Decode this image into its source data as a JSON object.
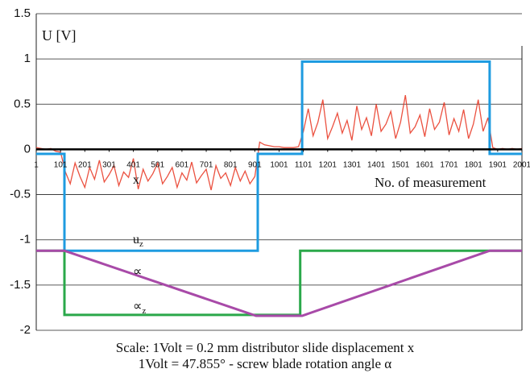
{
  "chart_data": {
    "type": "line",
    "y_label": "U [V]",
    "x_label": "No. of measurement",
    "ylim": [
      -2,
      1.5
    ],
    "yticks": [
      -2,
      -1.5,
      -1,
      -0.5,
      0,
      0.5,
      1,
      1.5
    ],
    "xlim": [
      1,
      2001
    ],
    "xticks": [
      1,
      101,
      201,
      301,
      401,
      501,
      601,
      701,
      801,
      901,
      1001,
      1101,
      1201,
      1301,
      1401,
      1501,
      1601,
      1701,
      1801,
      1901,
      2001
    ],
    "grid": true,
    "series": [
      {
        "color": "#e8321e",
        "x": [
          1,
          21,
          41,
          61,
          81,
          101,
          121,
          141,
          161,
          181,
          201,
          221,
          241,
          261,
          281,
          301,
          321,
          341,
          361,
          381,
          401,
          421,
          441,
          461,
          481,
          501,
          521,
          541,
          561,
          581,
          601,
          621,
          641,
          661,
          681,
          701,
          721,
          741,
          761,
          781,
          801,
          821,
          841,
          861,
          881,
          901,
          921,
          941,
          961,
          981,
          1001,
          1021,
          1041,
          1061,
          1081,
          1101,
          1121,
          1141,
          1161,
          1181,
          1201,
          1221,
          1241,
          1261,
          1281,
          1301,
          1321,
          1341,
          1361,
          1381,
          1401,
          1421,
          1441,
          1461,
          1481,
          1501,
          1521,
          1541,
          1561,
          1581,
          1601,
          1621,
          1641,
          1661,
          1681,
          1701,
          1721,
          1741,
          1761,
          1781,
          1801,
          1821,
          1841,
          1861,
          1881,
          1901,
          1921,
          1941,
          1961,
          1981,
          2001
        ],
        "values": [
          0.02,
          0.01,
          0.0,
          0.01,
          -0.02,
          -0.03,
          -0.25,
          -0.38,
          -0.15,
          -0.3,
          -0.42,
          -0.2,
          -0.33,
          -0.12,
          -0.36,
          -0.28,
          -0.18,
          -0.4,
          -0.25,
          -0.31,
          -0.1,
          -0.44,
          -0.22,
          -0.35,
          -0.27,
          -0.15,
          -0.38,
          -0.3,
          -0.2,
          -0.42,
          -0.26,
          -0.34,
          -0.14,
          -0.37,
          -0.29,
          -0.22,
          -0.45,
          -0.18,
          -0.32,
          -0.26,
          -0.4,
          -0.2,
          -0.35,
          -0.24,
          -0.38,
          -0.3,
          0.08,
          0.05,
          0.04,
          0.03,
          0.03,
          0.02,
          0.02,
          0.02,
          0.03,
          0.2,
          0.45,
          0.15,
          0.3,
          0.55,
          0.12,
          0.25,
          0.4,
          0.18,
          0.32,
          0.1,
          0.48,
          0.22,
          0.35,
          0.15,
          0.5,
          0.2,
          0.28,
          0.42,
          0.12,
          0.3,
          0.6,
          0.18,
          0.25,
          0.38,
          0.14,
          0.45,
          0.22,
          0.3,
          0.52,
          0.16,
          0.34,
          0.2,
          0.44,
          0.12,
          0.28,
          0.55,
          0.2,
          0.35,
          0.02,
          0.0,
          0.01,
          0.0,
          0.01,
          0.0,
          0.01
        ]
      },
      {
        "color": "#1e9be0",
        "x": [
          1,
          117,
          117,
          913,
          913,
          1096,
          1096,
          1868,
          1868,
          2001
        ],
        "values": [
          -0.05,
          -0.05,
          -1.12,
          -1.12,
          -0.05,
          -0.05,
          0.97,
          0.97,
          -0.05,
          -0.05
        ]
      },
      {
        "color": "#2aa84a",
        "x": [
          1,
          117,
          117,
          1088,
          1088,
          2001
        ],
        "values": [
          -1.12,
          -1.12,
          -1.83,
          -1.83,
          -1.12,
          -1.12
        ]
      },
      {
        "color": "#a84aa8",
        "x": [
          1,
          117,
          906,
          1096,
          1868,
          2001
        ],
        "values": [
          -1.12,
          -1.12,
          -1.84,
          -1.84,
          -1.12,
          -1.12
        ]
      }
    ],
    "annotations": [
      {
        "text": "x"
      },
      {
        "text": "u",
        "sub": "z"
      },
      {
        "text": "∝"
      },
      {
        "text": "∝",
        "sub": "z"
      }
    ],
    "caption": [
      "Scale: 1Volt = 0.2 mm  distributor slide displacement x",
      "1Volt = 47.855° - screw blade rotation angle α"
    ]
  }
}
